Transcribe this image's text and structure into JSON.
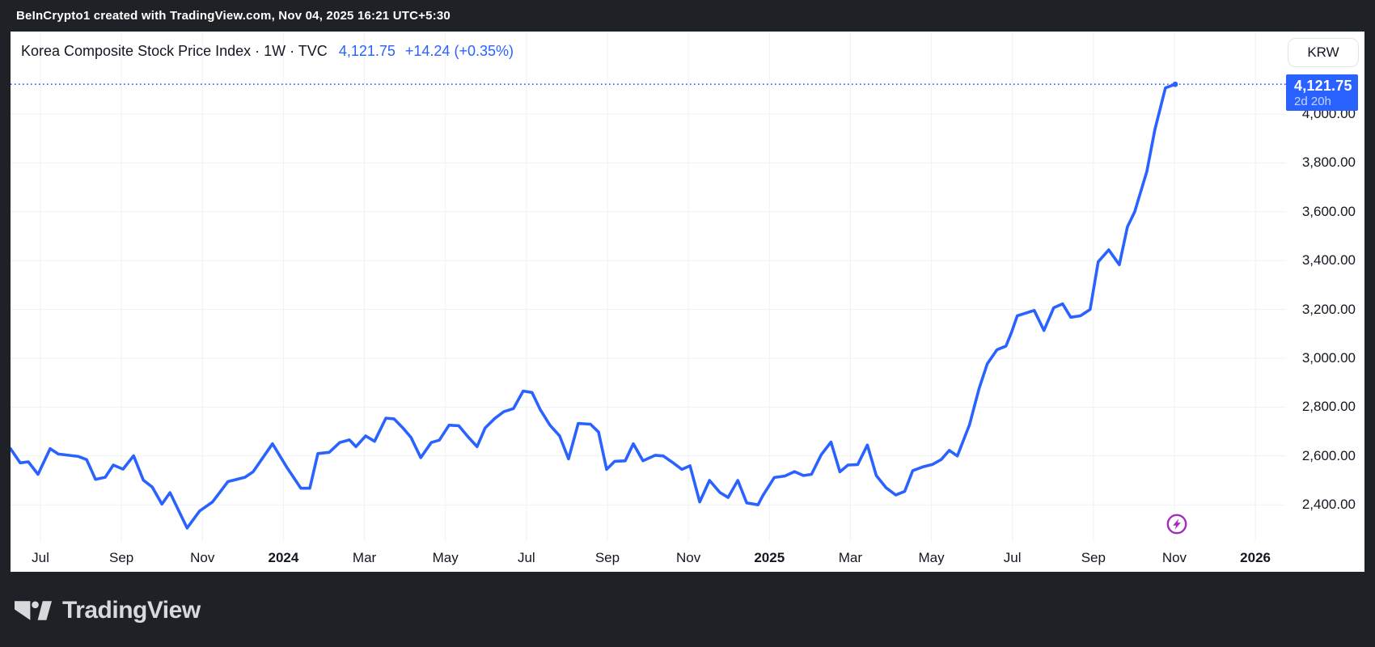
{
  "attribution": {
    "text": "BeInCrypto1 created with TradingView.com, Nov 04, 2025 16:21 UTC+5:30"
  },
  "header": {
    "title": "Korea Composite Stock Price Index · 1W · TVC",
    "price": "4,121.75",
    "change": "+14.24 (+0.35%)"
  },
  "currency_button": {
    "label": "KRW"
  },
  "price_badge": {
    "price": "4,121.75",
    "countdown": "2d 20h"
  },
  "footer": {
    "brand": "TradingView"
  },
  "colors": {
    "line": "#2962FF",
    "badge_bg": "#2962FF",
    "grid": "#eff1f5",
    "axis_text": "#131722",
    "marker_purple": "#A22DBC",
    "panel_bg": "#FFFFFF",
    "page_bg": "#1E2126"
  },
  "chart_data": {
    "type": "line",
    "title": "Korea Composite Stock Price Index",
    "interval": "1W",
    "exchange": "TVC",
    "currency": "KRW",
    "last_price": 4121.75,
    "change": 14.24,
    "change_pct": 0.35,
    "countdown": "2d 20h",
    "grid": true,
    "legend_position": "top-left",
    "xlabel": "",
    "ylabel": "",
    "x_unit": "months since Jul 2023 tick",
    "ylim": [
      2250,
      4280
    ],
    "y_ticks": [
      {
        "label": "4,000.00",
        "value": 4000
      },
      {
        "label": "3,800.00",
        "value": 3800
      },
      {
        "label": "3,600.00",
        "value": 3600
      },
      {
        "label": "3,400.00",
        "value": 3400
      },
      {
        "label": "3,200.00",
        "value": 3200
      },
      {
        "label": "3,000.00",
        "value": 3000
      },
      {
        "label": "2,800.00",
        "value": 2800
      },
      {
        "label": "2,600.00",
        "value": 2600
      },
      {
        "label": "2,400.00",
        "value": 2400
      }
    ],
    "x_ticks": [
      {
        "label": "Jul",
        "month": 0,
        "year": false
      },
      {
        "label": "Sep",
        "month": 2,
        "year": false
      },
      {
        "label": "Nov",
        "month": 4,
        "year": false
      },
      {
        "label": "2024",
        "month": 6,
        "year": true
      },
      {
        "label": "Mar",
        "month": 8,
        "year": false
      },
      {
        "label": "May",
        "month": 10,
        "year": false
      },
      {
        "label": "Jul",
        "month": 12,
        "year": false
      },
      {
        "label": "Sep",
        "month": 14,
        "year": false
      },
      {
        "label": "Nov",
        "month": 16,
        "year": false
      },
      {
        "label": "2025",
        "month": 18,
        "year": true
      },
      {
        "label": "Mar",
        "month": 20,
        "year": false
      },
      {
        "label": "May",
        "month": 22,
        "year": false
      },
      {
        "label": "Jul",
        "month": 24,
        "year": false
      },
      {
        "label": "Sep",
        "month": 26,
        "year": false
      },
      {
        "label": "Nov",
        "month": 28,
        "year": false
      },
      {
        "label": "2026",
        "month": 30,
        "year": true
      }
    ],
    "marker": {
      "name": "flash-event-marker",
      "x_month": 28.02,
      "y_value": 2290
    },
    "current_price_line": 4121.75,
    "points": [
      [
        -0.74,
        2630
      ],
      [
        -0.5,
        2572
      ],
      [
        -0.3,
        2576
      ],
      [
        -0.06,
        2525
      ],
      [
        0.24,
        2630
      ],
      [
        0.44,
        2608
      ],
      [
        0.94,
        2598
      ],
      [
        1.14,
        2585
      ],
      [
        1.36,
        2504
      ],
      [
        1.6,
        2513
      ],
      [
        1.8,
        2563
      ],
      [
        2.04,
        2546
      ],
      [
        2.3,
        2601
      ],
      [
        2.54,
        2501
      ],
      [
        2.76,
        2473
      ],
      [
        3.0,
        2403
      ],
      [
        3.2,
        2450
      ],
      [
        3.62,
        2305
      ],
      [
        3.93,
        2375
      ],
      [
        4.25,
        2412
      ],
      [
        4.63,
        2495
      ],
      [
        5.05,
        2513
      ],
      [
        5.25,
        2535
      ],
      [
        5.73,
        2650
      ],
      [
        6.09,
        2552
      ],
      [
        6.43,
        2468
      ],
      [
        6.65,
        2468
      ],
      [
        6.85,
        2610
      ],
      [
        7.13,
        2615
      ],
      [
        7.39,
        2655
      ],
      [
        7.63,
        2666
      ],
      [
        7.79,
        2638
      ],
      [
        8.03,
        2682
      ],
      [
        8.25,
        2660
      ],
      [
        8.53,
        2755
      ],
      [
        8.73,
        2752
      ],
      [
        8.95,
        2715
      ],
      [
        9.15,
        2676
      ],
      [
        9.39,
        2593
      ],
      [
        9.65,
        2655
      ],
      [
        9.85,
        2665
      ],
      [
        10.09,
        2726
      ],
      [
        10.33,
        2724
      ],
      [
        10.54,
        2682
      ],
      [
        10.78,
        2638
      ],
      [
        10.98,
        2715
      ],
      [
        11.22,
        2754
      ],
      [
        11.44,
        2781
      ],
      [
        11.68,
        2794
      ],
      [
        11.92,
        2866
      ],
      [
        12.14,
        2860
      ],
      [
        12.34,
        2790
      ],
      [
        12.58,
        2726
      ],
      [
        12.82,
        2682
      ],
      [
        13.04,
        2588
      ],
      [
        13.28,
        2733
      ],
      [
        13.58,
        2730
      ],
      [
        13.78,
        2698
      ],
      [
        13.98,
        2545
      ],
      [
        14.18,
        2578
      ],
      [
        14.44,
        2580
      ],
      [
        14.64,
        2650
      ],
      [
        14.88,
        2580
      ],
      [
        15.18,
        2603
      ],
      [
        15.38,
        2600
      ],
      [
        15.64,
        2570
      ],
      [
        15.84,
        2545
      ],
      [
        16.04,
        2560
      ],
      [
        16.28,
        2412
      ],
      [
        16.52,
        2500
      ],
      [
        16.78,
        2450
      ],
      [
        16.98,
        2430
      ],
      [
        17.22,
        2500
      ],
      [
        17.44,
        2408
      ],
      [
        17.72,
        2400
      ],
      [
        17.84,
        2438
      ],
      [
        18.12,
        2512
      ],
      [
        18.38,
        2518
      ],
      [
        18.62,
        2536
      ],
      [
        18.84,
        2520
      ],
      [
        19.04,
        2525
      ],
      [
        19.28,
        2605
      ],
      [
        19.52,
        2657
      ],
      [
        19.74,
        2535
      ],
      [
        19.94,
        2563
      ],
      [
        20.18,
        2565
      ],
      [
        20.42,
        2645
      ],
      [
        20.64,
        2520
      ],
      [
        20.88,
        2470
      ],
      [
        21.12,
        2440
      ],
      [
        21.34,
        2455
      ],
      [
        21.54,
        2540
      ],
      [
        21.78,
        2555
      ],
      [
        22.02,
        2565
      ],
      [
        22.24,
        2585
      ],
      [
        22.44,
        2623
      ],
      [
        22.64,
        2600
      ],
      [
        22.94,
        2727
      ],
      [
        23.18,
        2877
      ],
      [
        23.38,
        2977
      ],
      [
        23.62,
        3035
      ],
      [
        23.84,
        3050
      ],
      [
        23.98,
        3107
      ],
      [
        24.12,
        3174
      ],
      [
        24.54,
        3196
      ],
      [
        24.78,
        3114
      ],
      [
        25.02,
        3207
      ],
      [
        25.24,
        3223
      ],
      [
        25.44,
        3168
      ],
      [
        25.68,
        3174
      ],
      [
        25.92,
        3200
      ],
      [
        26.12,
        3395
      ],
      [
        26.38,
        3444
      ],
      [
        26.64,
        3383
      ],
      [
        26.84,
        3538
      ],
      [
        27.02,
        3600
      ],
      [
        27.32,
        3765
      ],
      [
        27.52,
        3937
      ],
      [
        27.78,
        4107
      ],
      [
        28.02,
        4121.75
      ]
    ]
  }
}
